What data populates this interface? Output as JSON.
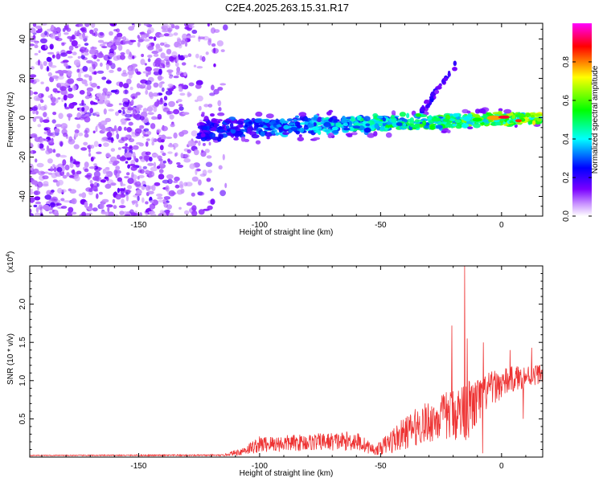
{
  "figure": {
    "title": "C2E4.2025.263.15.31.R17"
  },
  "chart_data": [
    {
      "type": "heatmap",
      "xlabel": "Height of straight line (km)",
      "ylabel": "Frequency (Hz)",
      "xlim": [
        -195,
        17
      ],
      "ylim": [
        -50,
        48
      ],
      "x_ticks": [
        -150,
        -100,
        -50,
        0
      ],
      "x_tick_labels": [
        "-150",
        "-100",
        "-50",
        "0"
      ],
      "y_ticks": [
        -40,
        -20,
        0,
        20,
        40
      ],
      "y_tick_labels": [
        "-40",
        "-20",
        "0",
        "20",
        "40"
      ],
      "colorbar": {
        "label": "Normalized spectral amplitude",
        "range": [
          0,
          1
        ],
        "ticks": [
          0.0,
          0.2,
          0.4,
          0.6,
          0.8
        ],
        "tick_labels": [
          "0.0",
          "0.2",
          "0.4",
          "0.6",
          "0.8"
        ],
        "colormap": [
          "#ffffff",
          "#cc99ff",
          "#7a00ff",
          "#0000ff",
          "#00ffff",
          "#00ff00",
          "#ffff00",
          "#ff0000",
          "#ff00ff"
        ]
      },
      "features": [
        {
          "kind": "diffuse-noise",
          "x_range": [
            -195,
            -113
          ],
          "y_range": [
            -50,
            48
          ],
          "amplitude": 0.15
        },
        {
          "kind": "signal-band",
          "x_range": [
            -125,
            17
          ],
          "center_freq_hz": 0,
          "width_hz": 10,
          "peak_amplitude": 0.95,
          "peak_at_km": 0
        },
        {
          "kind": "streak",
          "x_range": [
            -33,
            -19
          ],
          "y_range": [
            3,
            27
          ],
          "amplitude": 0.25
        }
      ]
    },
    {
      "type": "line",
      "xlabel": "Height of straight line (km)",
      "ylabel": "SNR (10 * v/v)",
      "yscale_label": "(x10^4)",
      "xlim": [
        -195,
        17
      ],
      "ylim": [
        0,
        2.5
      ],
      "x_ticks": [
        -150,
        -100,
        -50,
        0
      ],
      "x_tick_labels": [
        "-150",
        "-100",
        "-50",
        "0"
      ],
      "y_ticks": [
        0.5,
        1.0,
        1.5,
        2.0
      ],
      "y_tick_labels": [
        "0.5",
        "1.0",
        "1.5",
        "2.0"
      ],
      "series": [
        {
          "color": "#ee3333",
          "envelope": [
            {
              "x": -195,
              "base": 0.02,
              "spread": 0.01
            },
            {
              "x": -115,
              "base": 0.02,
              "spread": 0.02
            },
            {
              "x": -108,
              "base": 0.05,
              "spread": 0.1
            },
            {
              "x": -100,
              "base": 0.12,
              "spread": 0.22
            },
            {
              "x": -80,
              "base": 0.15,
              "spread": 0.22
            },
            {
              "x": -60,
              "base": 0.16,
              "spread": 0.26
            },
            {
              "x": -52,
              "base": 0.06,
              "spread": 0.12
            },
            {
              "x": -45,
              "base": 0.15,
              "spread": 0.35
            },
            {
              "x": -35,
              "base": 0.3,
              "spread": 0.5
            },
            {
              "x": -25,
              "base": 0.4,
              "spread": 0.6
            },
            {
              "x": -15,
              "base": 0.45,
              "spread": 0.8
            },
            {
              "x": -12,
              "base": 0.5,
              "spread": 0.75
            },
            {
              "x": -5,
              "base": 0.8,
              "spread": 0.45
            },
            {
              "x": 5,
              "base": 0.95,
              "spread": 0.35
            },
            {
              "x": 17,
              "base": 1.05,
              "spread": 0.25
            }
          ],
          "spikes": [
            {
              "x": -15.2,
              "y": 2.5
            },
            {
              "x": -20.5,
              "y": 1.72
            },
            {
              "x": -14.2,
              "y": 1.55
            },
            {
              "x": -7.5,
              "y": 1.5
            },
            {
              "x": 3.5,
              "y": 1.4
            },
            {
              "x": 12.5,
              "y": 1.43
            },
            {
              "x": 9,
              "y": 0.5
            },
            {
              "x": -7.8,
              "y": 0.05
            }
          ]
        }
      ]
    }
  ]
}
